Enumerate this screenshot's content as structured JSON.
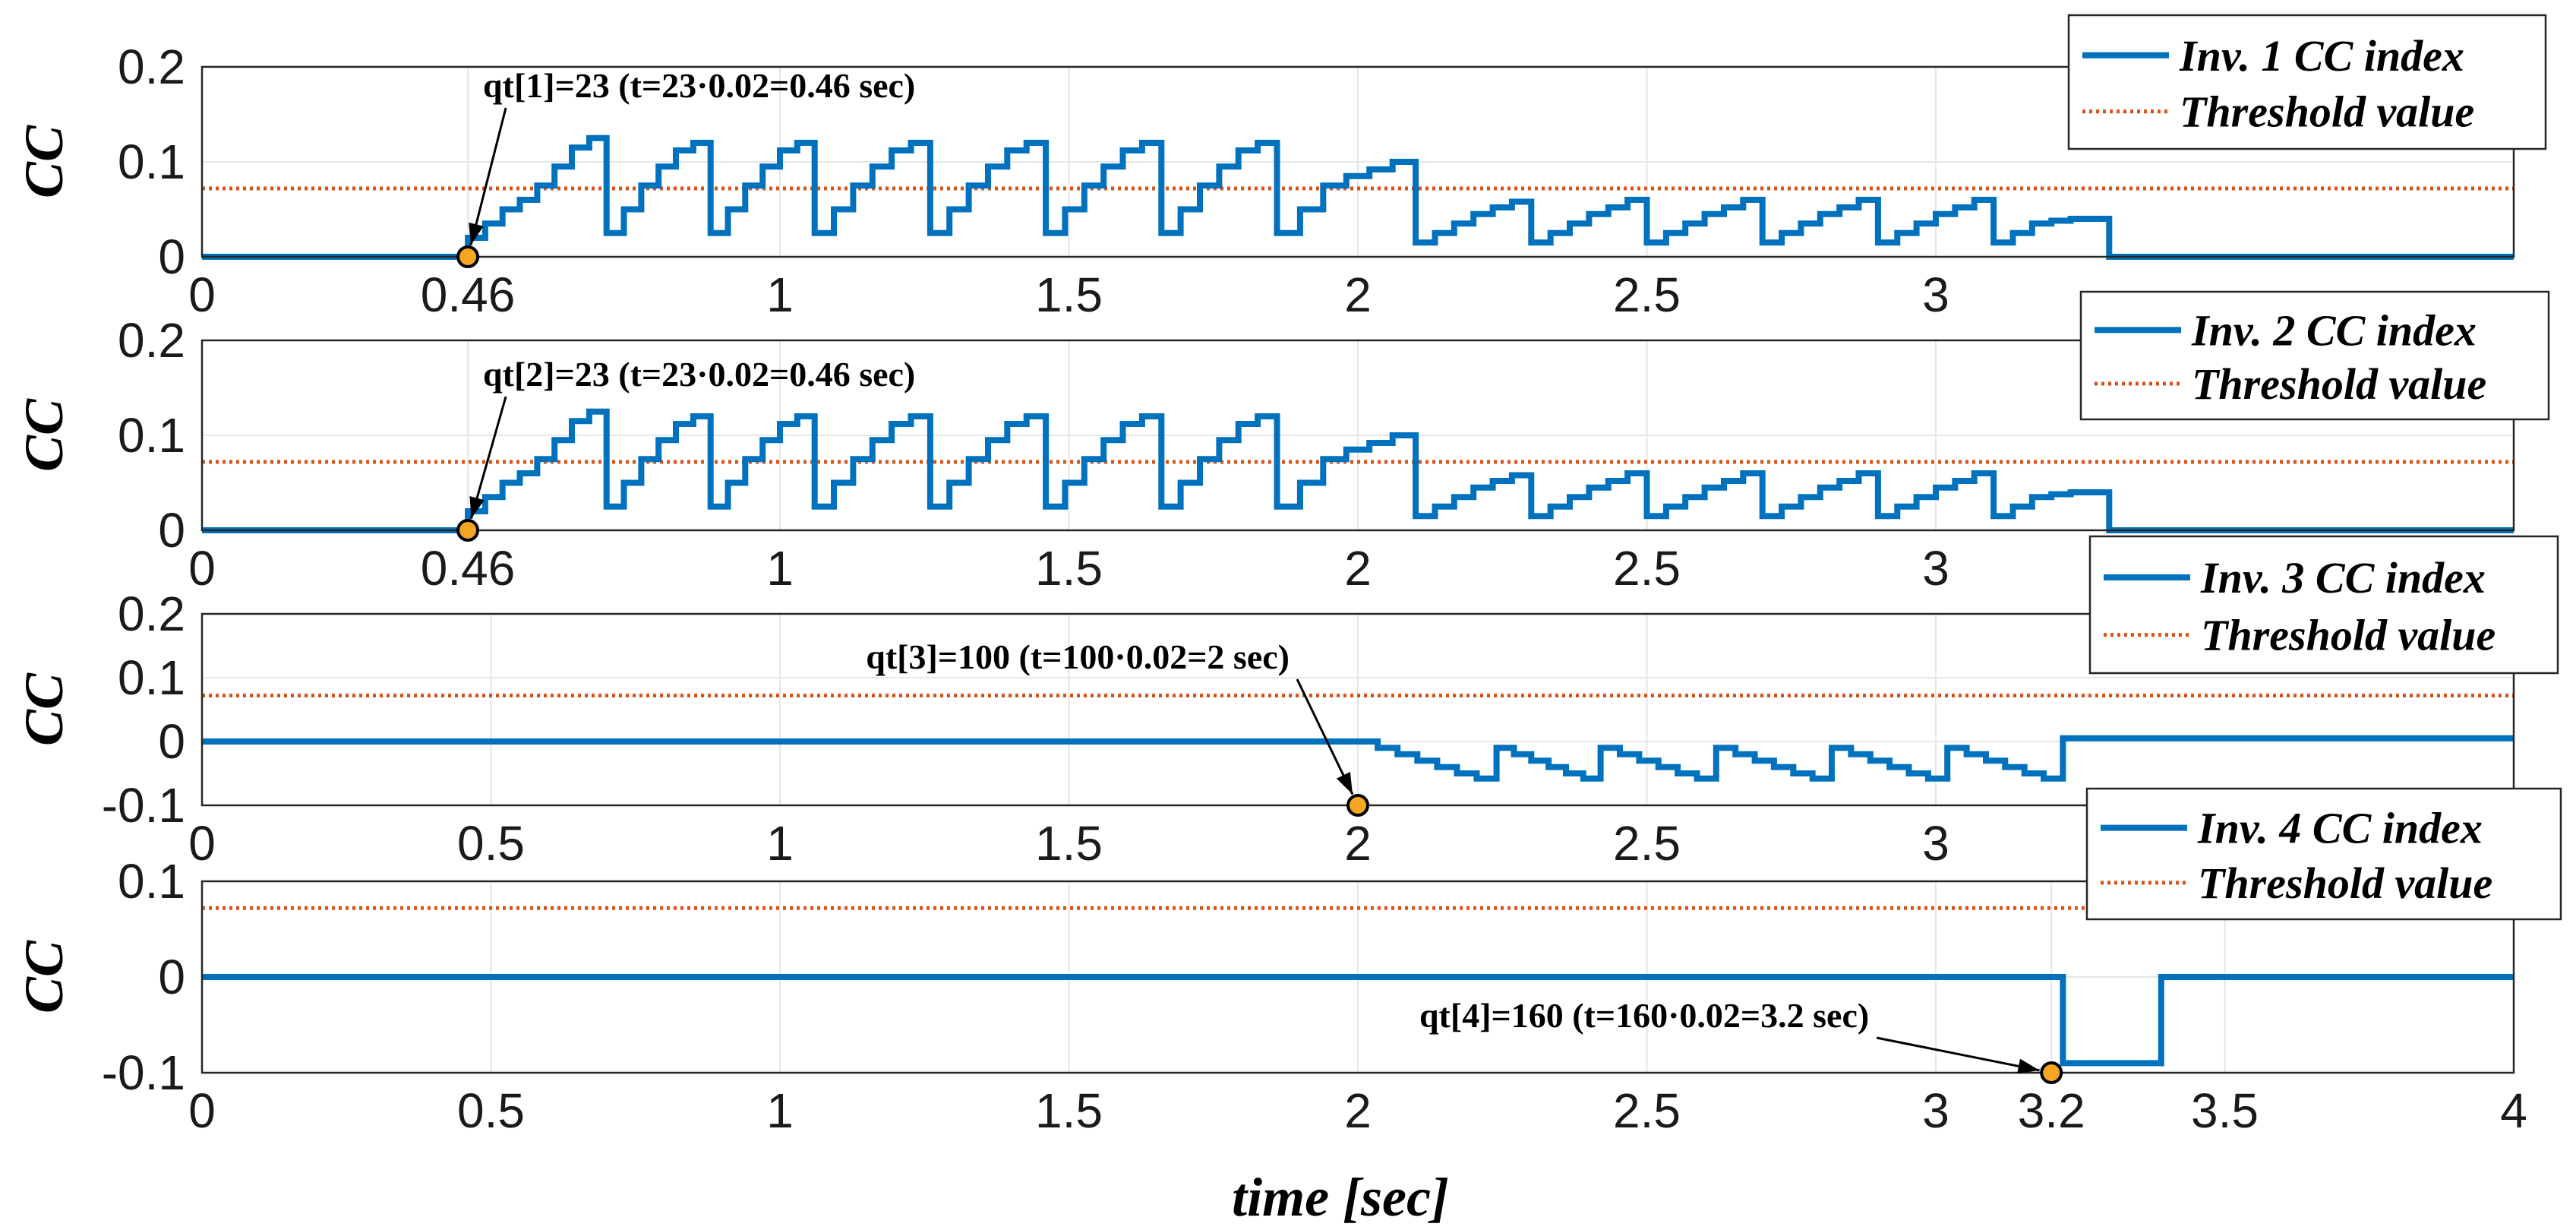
{
  "figure": {
    "xlabel": "time [sec]"
  },
  "colors": {
    "cc": "#0072BD",
    "threshold": "#D95319",
    "marker_fill": "#F5A623",
    "grid": "#e6e6e6",
    "axis": "#262626"
  },
  "chart_data": [
    {
      "type": "line",
      "ylabel": "CC",
      "xlim": [
        0,
        4
      ],
      "ylim": [
        0,
        0.2
      ],
      "xticks": [
        0,
        0.46,
        1,
        1.5,
        2,
        2.5,
        3
      ],
      "xtick_labels": [
        "0",
        "0.46",
        "1",
        "1.5",
        "2",
        "2.5",
        "3"
      ],
      "yticks": [
        0,
        0.1,
        0.2
      ],
      "ytick_labels": [
        "0",
        "0.1",
        "0.2"
      ],
      "threshold": 0.072,
      "legend": [
        "Inv. 1 CC index",
        "Threshold value"
      ],
      "annotation": {
        "text": "qt[1]=23 (t=23·0.02=0.46 sec)",
        "x": 0.46,
        "y": 0.0
      },
      "series": {
        "name": "Inv. 1 CC index",
        "baseline": 0.0,
        "end": 3.3,
        "segments": [
          {
            "start": 0.46,
            "end": 0.58,
            "levels": [
              0.02,
              0.035,
              0.05,
              0.06
            ]
          },
          {
            "start": 0.58,
            "end": 0.7,
            "levels": [
              0.075,
              0.095,
              0.115,
              0.125
            ]
          },
          {
            "start": 0.7,
            "end": 0.88,
            "levels": [
              0.025,
              0.05,
              0.075,
              0.095,
              0.112,
              0.12
            ]
          },
          {
            "start": 0.88,
            "end": 1.06,
            "levels": [
              0.025,
              0.05,
              0.075,
              0.095,
              0.112,
              0.12
            ]
          },
          {
            "start": 1.06,
            "end": 1.26,
            "levels": [
              0.025,
              0.05,
              0.075,
              0.095,
              0.112,
              0.12
            ]
          },
          {
            "start": 1.26,
            "end": 1.46,
            "levels": [
              0.025,
              0.05,
              0.075,
              0.095,
              0.112,
              0.12
            ]
          },
          {
            "start": 1.46,
            "end": 1.66,
            "levels": [
              0.025,
              0.05,
              0.075,
              0.095,
              0.112,
              0.12
            ]
          },
          {
            "start": 1.66,
            "end": 1.86,
            "levels": [
              0.025,
              0.05,
              0.075,
              0.095,
              0.112,
              0.12
            ]
          },
          {
            "start": 1.86,
            "end": 2.1,
            "levels": [
              0.025,
              0.05,
              0.075,
              0.085,
              0.092,
              0.1
            ]
          },
          {
            "start": 2.1,
            "end": 2.3,
            "levels": [
              0.015,
              0.025,
              0.035,
              0.045,
              0.052,
              0.058
            ]
          },
          {
            "start": 2.3,
            "end": 2.5,
            "levels": [
              0.015,
              0.025,
              0.035,
              0.045,
              0.052,
              0.06
            ]
          },
          {
            "start": 2.5,
            "end": 2.7,
            "levels": [
              0.015,
              0.025,
              0.035,
              0.045,
              0.052,
              0.06
            ]
          },
          {
            "start": 2.7,
            "end": 2.9,
            "levels": [
              0.015,
              0.025,
              0.035,
              0.045,
              0.052,
              0.06
            ]
          },
          {
            "start": 2.9,
            "end": 3.1,
            "levels": [
              0.015,
              0.025,
              0.035,
              0.045,
              0.052,
              0.06
            ]
          },
          {
            "start": 3.1,
            "end": 3.3,
            "levels": [
              0.015,
              0.025,
              0.035,
              0.038,
              0.04,
              0.04
            ]
          }
        ]
      }
    },
    {
      "type": "line",
      "ylabel": "CC",
      "xlim": [
        0,
        4
      ],
      "ylim": [
        0,
        0.2
      ],
      "xticks": [
        0,
        0.46,
        1,
        1.5,
        2,
        2.5,
        3
      ],
      "xtick_labels": [
        "0",
        "0.46",
        "1",
        "1.5",
        "2",
        "2.5",
        "3"
      ],
      "yticks": [
        0,
        0.1,
        0.2
      ],
      "ytick_labels": [
        "0",
        "0.1",
        "0.2"
      ],
      "threshold": 0.072,
      "legend": [
        "Inv. 2 CC index",
        "Threshold value"
      ],
      "annotation": {
        "text": "qt[2]=23 (t=23·0.02=0.46 sec)",
        "x": 0.46,
        "y": 0.0
      },
      "series": {
        "name": "Inv. 2 CC index",
        "baseline": 0.0,
        "end": 3.3,
        "segments": [
          {
            "start": 0.46,
            "end": 0.58,
            "levels": [
              0.02,
              0.035,
              0.05,
              0.06
            ]
          },
          {
            "start": 0.58,
            "end": 0.7,
            "levels": [
              0.075,
              0.095,
              0.115,
              0.125
            ]
          },
          {
            "start": 0.7,
            "end": 0.88,
            "levels": [
              0.025,
              0.05,
              0.075,
              0.095,
              0.112,
              0.12
            ]
          },
          {
            "start": 0.88,
            "end": 1.06,
            "levels": [
              0.025,
              0.05,
              0.075,
              0.095,
              0.112,
              0.12
            ]
          },
          {
            "start": 1.06,
            "end": 1.26,
            "levels": [
              0.025,
              0.05,
              0.075,
              0.095,
              0.112,
              0.12
            ]
          },
          {
            "start": 1.26,
            "end": 1.46,
            "levels": [
              0.025,
              0.05,
              0.075,
              0.095,
              0.112,
              0.12
            ]
          },
          {
            "start": 1.46,
            "end": 1.66,
            "levels": [
              0.025,
              0.05,
              0.075,
              0.095,
              0.112,
              0.12
            ]
          },
          {
            "start": 1.66,
            "end": 1.86,
            "levels": [
              0.025,
              0.05,
              0.075,
              0.095,
              0.112,
              0.12
            ]
          },
          {
            "start": 1.86,
            "end": 2.1,
            "levels": [
              0.025,
              0.05,
              0.075,
              0.085,
              0.092,
              0.1
            ]
          },
          {
            "start": 2.1,
            "end": 2.3,
            "levels": [
              0.015,
              0.025,
              0.035,
              0.045,
              0.052,
              0.058
            ]
          },
          {
            "start": 2.3,
            "end": 2.5,
            "levels": [
              0.015,
              0.025,
              0.035,
              0.045,
              0.052,
              0.06
            ]
          },
          {
            "start": 2.5,
            "end": 2.7,
            "levels": [
              0.015,
              0.025,
              0.035,
              0.045,
              0.052,
              0.06
            ]
          },
          {
            "start": 2.7,
            "end": 2.9,
            "levels": [
              0.015,
              0.025,
              0.035,
              0.045,
              0.052,
              0.06
            ]
          },
          {
            "start": 2.9,
            "end": 3.1,
            "levels": [
              0.015,
              0.025,
              0.035,
              0.045,
              0.052,
              0.06
            ]
          },
          {
            "start": 3.1,
            "end": 3.3,
            "levels": [
              0.015,
              0.025,
              0.035,
              0.038,
              0.04,
              0.04
            ]
          }
        ]
      }
    },
    {
      "type": "line",
      "ylabel": "CC",
      "xlim": [
        0,
        4
      ],
      "ylim": [
        -0.1,
        0.2
      ],
      "xticks": [
        0,
        0.5,
        1,
        1.5,
        2,
        2.5,
        3
      ],
      "xtick_labels": [
        "0",
        "0.5",
        "1",
        "1.5",
        "2",
        "2.5",
        "3"
      ],
      "yticks": [
        -0.1,
        0,
        0.1,
        0.2
      ],
      "ytick_labels": [
        "-0.1",
        "0",
        "0.1",
        "0.2"
      ],
      "threshold": 0.072,
      "legend": [
        "Inv. 3 CC index",
        "Threshold value"
      ],
      "annotation": {
        "text": "qt[3]=100 (t=100·0.02=2 sec)",
        "x": 2.0,
        "y": -0.1
      },
      "series": {
        "name": "Inv. 3 CC index",
        "baseline": 0.0,
        "end": 3.22,
        "after": 0.005,
        "segments": [
          {
            "start": 2.0,
            "end": 2.24,
            "levels": [
              0.0,
              -0.01,
              -0.02,
              -0.03,
              -0.04,
              -0.05,
              -0.058
            ]
          },
          {
            "start": 2.24,
            "end": 2.42,
            "levels": [
              -0.01,
              -0.02,
              -0.03,
              -0.04,
              -0.05,
              -0.058
            ]
          },
          {
            "start": 2.42,
            "end": 2.62,
            "levels": [
              -0.01,
              -0.02,
              -0.03,
              -0.04,
              -0.05,
              -0.058
            ]
          },
          {
            "start": 2.62,
            "end": 2.82,
            "levels": [
              -0.01,
              -0.02,
              -0.03,
              -0.04,
              -0.05,
              -0.058
            ]
          },
          {
            "start": 2.82,
            "end": 3.02,
            "levels": [
              -0.01,
              -0.02,
              -0.03,
              -0.04,
              -0.05,
              -0.058
            ]
          },
          {
            "start": 3.02,
            "end": 3.22,
            "levels": [
              -0.01,
              -0.02,
              -0.03,
              -0.04,
              -0.05,
              -0.058
            ]
          }
        ]
      }
    },
    {
      "type": "line",
      "ylabel": "CC",
      "xlim": [
        0,
        4
      ],
      "ylim": [
        -0.1,
        0.1
      ],
      "xticks": [
        0,
        0.5,
        1,
        1.5,
        2,
        2.5,
        3,
        3.2,
        3.5,
        4
      ],
      "xtick_labels": [
        "0",
        "0.5",
        "1",
        "1.5",
        "2",
        "2.5",
        "3",
        "3.2",
        "3.5",
        "4"
      ],
      "yticks": [
        -0.1,
        0,
        0.1
      ],
      "ytick_labels": [
        "-0.1",
        "0",
        "0.1"
      ],
      "threshold": 0.072,
      "legend": [
        "Inv. 4 CC index",
        "Threshold value"
      ],
      "annotation": {
        "text": "qt[4]=160 (t=160·0.02=3.2 sec)",
        "x": 3.2,
        "y": -0.1
      },
      "series": {
        "name": "Inv. 4 CC index",
        "baseline": 0.0,
        "end": 4.0,
        "pulse": {
          "start": 3.22,
          "end": 3.39,
          "level": -0.09
        }
      }
    }
  ]
}
